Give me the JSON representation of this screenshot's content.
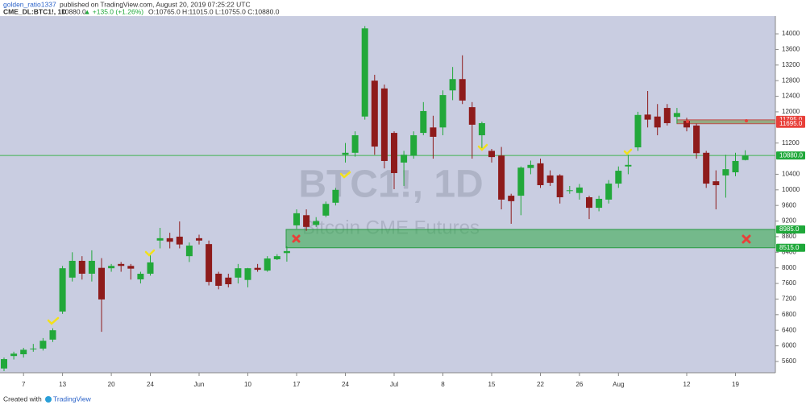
{
  "header": {
    "author": "golden_ratio1337",
    "published": "published on TradingView.com, August 20, 2019 07:25:22 UTC",
    "symbol": "CME_DL:BTC1!, 1D",
    "last": "10880.0",
    "change": "▲ +135.0 (+1.26%)",
    "ohlc": "O:10765.0 H:11015.0 L:10755.0 C:10880.0"
  },
  "footer": {
    "created": "Created with",
    "brand": "TradingView"
  },
  "chart_data": {
    "type": "candlestick",
    "watermark": "BTC1!, 1D",
    "watermark_subtitle": "Bitcoin CME Futures",
    "categories": [
      null,
      null,
      "7",
      null,
      null,
      null,
      "13",
      null,
      null,
      null,
      null,
      "20",
      null,
      null,
      null,
      "24",
      null,
      null,
      null,
      null,
      "Jun",
      null,
      null,
      null,
      null,
      "10",
      null,
      null,
      null,
      null,
      "17",
      null,
      null,
      null,
      null,
      "24",
      null,
      null,
      null,
      null,
      "Jul",
      null,
      null,
      null,
      null,
      "8",
      null,
      null,
      null,
      null,
      "15",
      null,
      null,
      null,
      null,
      "22",
      null,
      null,
      null,
      "26",
      null,
      null,
      null,
      "Aug",
      null,
      null,
      null,
      null,
      null,
      null,
      "12",
      null,
      null,
      null,
      null,
      "19",
      null
    ],
    "open": [
      5420,
      5740,
      5785,
      5910,
      5930,
      6160,
      6880,
      7750,
      8180,
      7850,
      8000,
      7990,
      8100,
      8050,
      7705,
      7850,
      8700,
      8760,
      8800,
      8300,
      8760,
      8610,
      7850,
      7750,
      7750,
      7690,
      8000,
      7930,
      8220,
      8380,
      9090,
      9350,
      9100,
      9340,
      9670,
      10900,
      10950,
      11880,
      12800,
      12600,
      11460,
      10700,
      10880,
      11460,
      11600,
      11600,
      12550,
      12840,
      12120,
      11400,
      11000,
      10880,
      9850,
      9850,
      10560,
      10680,
      10370,
      10370,
      9970,
      9920,
      9810,
      9540,
      9750,
      10160,
      10600,
      11090,
      11930,
      11880,
      12100,
      11870,
      11770,
      11650,
      10950,
      10220,
      10370,
      10450,
      10765
    ],
    "high": [
      5700,
      5850,
      5950,
      6050,
      6200,
      6450,
      8050,
      8400,
      8300,
      8450,
      8250,
      8100,
      8150,
      8100,
      7900,
      8350,
      9025,
      8900,
      9190,
      8650,
      8850,
      8700,
      7900,
      7850,
      8100,
      8000,
      8100,
      8300,
      8350,
      8550,
      9500,
      9500,
      9300,
      9700,
      10050,
      11200,
      11500,
      14200,
      12950,
      12700,
      11500,
      11000,
      11500,
      12250,
      11900,
      12550,
      13150,
      13450,
      12250,
      11750,
      11050,
      11100,
      9900,
      10600,
      10750,
      10800,
      10500,
      10400,
      10100,
      10150,
      9850,
      9850,
      10250,
      10600,
      10900,
      12000,
      12535,
      12200,
      12200,
      12100,
      11850,
      11700,
      11000,
      10500,
      10900,
      10950,
      11015
    ],
    "low": [
      5350,
      5650,
      5700,
      5850,
      5880,
      6100,
      6820,
      7650,
      7700,
      7650,
      6360,
      7900,
      7900,
      7700,
      7600,
      7800,
      8500,
      8500,
      8500,
      8150,
      8600,
      7550,
      7450,
      7500,
      7600,
      7500,
      7900,
      7900,
      8200,
      8160,
      9000,
      8950,
      9050,
      9300,
      9600,
      10700,
      10850,
      11800,
      10900,
      10550,
      10016,
      10100,
      10800,
      11400,
      10800,
      11400,
      12300,
      12200,
      10800,
      11000,
      10700,
      9500,
      9130,
      9350,
      10400,
      10050,
      10100,
      9650,
      9900,
      9750,
      9250,
      9450,
      9650,
      10050,
      10400,
      11000,
      11600,
      11400,
      11650,
      11700,
      11500,
      10800,
      10050,
      9500,
      9800,
      10350,
      10755
    ],
    "close": [
      5660,
      5800,
      5900,
      5930,
      6130,
      6400,
      7990,
      8180,
      7850,
      8180,
      7190,
      8050,
      8050,
      7980,
      7849,
      8140,
      8760,
      8670,
      8600,
      8570,
      8700,
      7640,
      7540,
      7580,
      7990,
      7990,
      7950,
      8240,
      8300,
      8430,
      9400,
      9050,
      9200,
      9640,
      10000,
      10950,
      11400,
      14140,
      11110,
      10740,
      10430,
      10900,
      11400,
      12020,
      11360,
      12430,
      12840,
      12290,
      11670,
      11710,
      10840,
      9750,
      9710,
      10570,
      10640,
      10120,
      10180,
      9810,
      9990,
      10060,
      9540,
      9770,
      10160,
      10490,
      10640,
      11920,
      11800,
      11600,
      11710,
      11970,
      11600,
      10940,
      10160,
      10120,
      10530,
      10740,
      10880
    ],
    "up_color": "#22a83a",
    "down_color": "#8e1b1b",
    "levels": [
      {
        "value": 11795,
        "label": "11795.0",
        "color": "#e8403a"
      },
      {
        "value": 11695,
        "label": "11695.0",
        "color": "#e8403a"
      },
      {
        "value": 10880,
        "label": "10880.0",
        "color": "#1fa83a"
      },
      {
        "value": 8985,
        "label": "8985.0",
        "color": "#1fa83a"
      },
      {
        "value": 8515,
        "label": "8515.0",
        "color": "#1fa83a"
      }
    ],
    "ylim": [
      5310,
      14455
    ],
    "yticks": [
      5600,
      6000,
      6400,
      6800,
      7200,
      7600,
      8000,
      8400,
      8800,
      9200,
      9600,
      10000,
      10400,
      11200,
      12000,
      12400,
      12800,
      13200,
      13600,
      14000
    ],
    "grid": false
  }
}
